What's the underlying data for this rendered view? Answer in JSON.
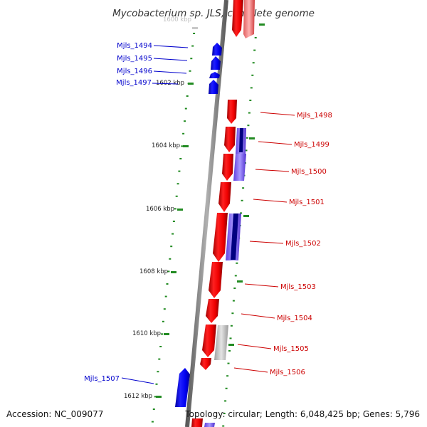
{
  "title": "Mycobacterium sp. JLS, complete genome",
  "accession": "Accession: NC_009077",
  "summary": "Topology: circular; Length: 6,048,425 bp; Genes: 5,796",
  "colors": {
    "forward_gene": "#ff1010",
    "reverse_gene": "#1010ff",
    "pale_forward": "#ff9a9a",
    "pale_reverse": "#8c7cff",
    "navy": "#000080",
    "grey_gene": "#c8c8c8",
    "backbone": "#888888",
    "tick": "#228b22",
    "forward_label": "#cc0000",
    "reverse_label": "#0000cc"
  },
  "scale_labels": [
    "1600 kbp",
    "1602 kbp",
    "1604 kbp",
    "1606 kbp",
    "1608 kbp",
    "1610 kbp",
    "1612 kbp"
  ],
  "reverse_genes": [
    {
      "name": "Mjls_1494"
    },
    {
      "name": "Mjls_1495"
    },
    {
      "name": "Mjls_1496"
    },
    {
      "name": "Mjls_1497"
    },
    {
      "name": "Mjls_1507"
    }
  ],
  "forward_genes": [
    {
      "name": "Mjls_1498"
    },
    {
      "name": "Mjls_1499"
    },
    {
      "name": "Mjls_1500"
    },
    {
      "name": "Mjls_1501"
    },
    {
      "name": "Mjls_1502"
    },
    {
      "name": "Mjls_1503"
    },
    {
      "name": "Mjls_1504"
    },
    {
      "name": "Mjls_1505"
    },
    {
      "name": "Mjls_1506"
    }
  ]
}
